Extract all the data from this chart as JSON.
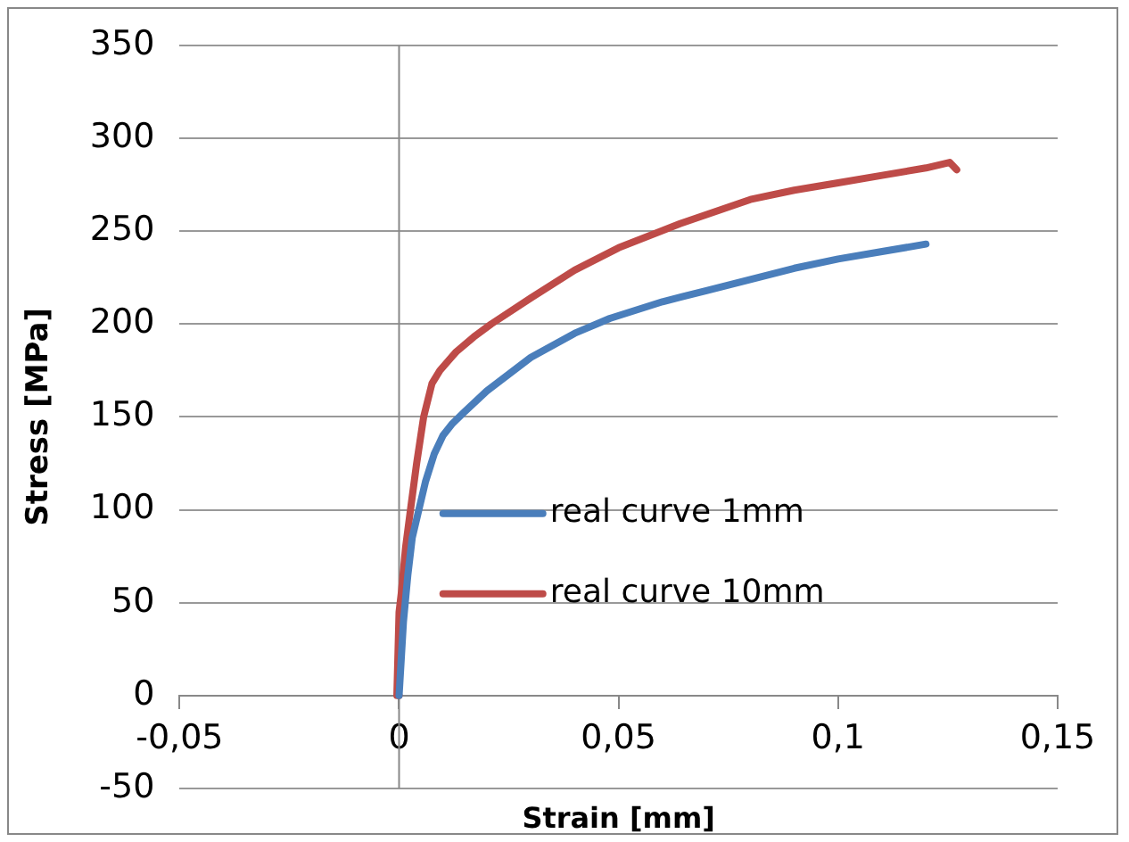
{
  "chart_data": {
    "type": "line",
    "xlabel": "Strain [mm]",
    "ylabel": "Stress [MPa]",
    "xlim": [
      -0.05,
      0.15
    ],
    "xticks": [
      {
        "value": -0.05,
        "label": "-0,05"
      },
      {
        "value": 0,
        "label": "0"
      },
      {
        "value": 0.05,
        "label": "0,05"
      },
      {
        "value": 0.1,
        "label": "0,1"
      },
      {
        "value": 0.15,
        "label": "0,15"
      }
    ],
    "ylim": [
      -50,
      350
    ],
    "yticks": [
      -50,
      0,
      50,
      100,
      150,
      200,
      250,
      300,
      350
    ],
    "grid": "y",
    "legend": "center left",
    "marker": "none",
    "line_style": "solid",
    "series": [
      {
        "name": "real curve 1mm",
        "color": "#4a7ebb",
        "x": [
          0,
          0.0005,
          0.001,
          0.002,
          0.003,
          0.0045,
          0.006,
          0.008,
          0.01,
          0.012,
          0.0146,
          0.02,
          0.03,
          0.04,
          0.048,
          0.06,
          0.07,
          0.08,
          0.09,
          0.1,
          0.11,
          0.12
        ],
        "values": [
          0,
          20,
          40,
          65,
          85,
          100,
          115,
          130,
          140,
          146,
          152,
          164,
          182,
          195,
          203,
          212,
          218,
          224,
          230,
          235,
          239,
          243
        ]
      },
      {
        "name": "real curve 10mm",
        "color": "#be4b48",
        "x": [
          0,
          -0.0005,
          0,
          0.0005,
          0.0015,
          0.0026,
          0.004,
          0.0056,
          0.0075,
          0.0093,
          0.013,
          0.017,
          0.021,
          0.03,
          0.04,
          0.05,
          0.064,
          0.08,
          0.09,
          0.1,
          0.11,
          0.12,
          0.1254,
          0.127
        ],
        "values": [
          0,
          0,
          45,
          55,
          80,
          100,
          125,
          150,
          168,
          175,
          185,
          193,
          200,
          214,
          229,
          241,
          254,
          267,
          272,
          276,
          280,
          284,
          287,
          283
        ]
      }
    ]
  }
}
